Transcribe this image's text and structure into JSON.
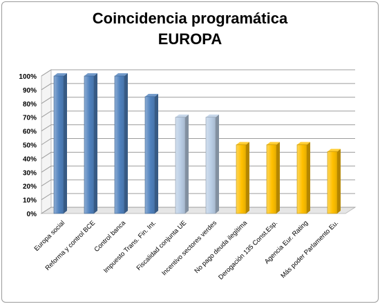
{
  "chart_data": {
    "type": "bar",
    "title": [
      "Coincidencia programática",
      "EUROPA"
    ],
    "xlabel": "",
    "ylabel": "",
    "ylim": [
      0,
      1
    ],
    "ytick_labels": [
      "0%",
      "10%",
      "20%",
      "30%",
      "40%",
      "50%",
      "60%",
      "70%",
      "80%",
      "90%",
      "100%"
    ],
    "grid": true,
    "legend": "none",
    "categories": [
      "Europa social",
      "Reforma y control BCE",
      "Control banca",
      "Impuesto Trans. Fin. Int.",
      "Fiscalidad conjunta UE",
      "Incentivo sectores verdes",
      "No pago deuda ilegítima",
      "Derogación 135 Const.Esp.",
      "Agencia Eur. Rating",
      "Más poder Parlamento Eu."
    ],
    "values": [
      1.0,
      1.0,
      1.0,
      0.85,
      0.7,
      0.7,
      0.5,
      0.5,
      0.5,
      0.45
    ],
    "bar_colors": [
      "#4F81BD",
      "#4F81BD",
      "#4F81BD",
      "#4F81BD",
      "#B9CDE5",
      "#B9CDE5",
      "#FFC000",
      "#FFC000",
      "#FFC000",
      "#FFC000"
    ]
  }
}
